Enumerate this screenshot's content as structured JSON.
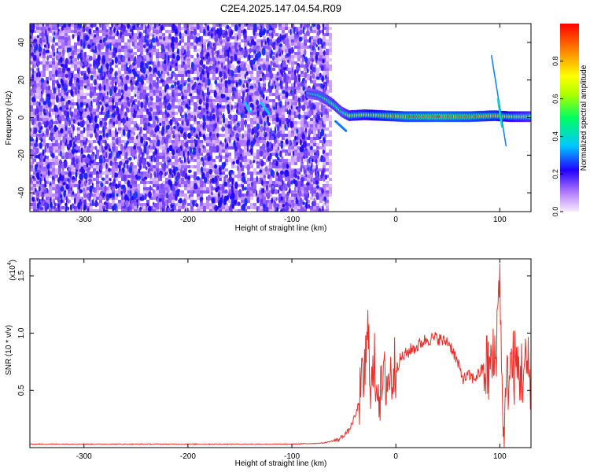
{
  "title": "C2E4.2025.147.04.54.R09",
  "chart_data": [
    {
      "type": "heatmap",
      "name": "spectrogram",
      "xlabel": "Height of straight line (km)",
      "ylabel": "Frequency (Hz)",
      "xlim": [
        -352,
        130
      ],
      "ylim": [
        -50,
        50
      ],
      "xticks": [
        -300,
        -200,
        -100,
        0,
        100
      ],
      "yticks": [
        -40,
        -20,
        0,
        20,
        40
      ],
      "xtick_labels": [
        "-300",
        "-200",
        "-100",
        "0",
        "100"
      ],
      "ytick_labels": [
        "-40",
        "-20",
        "0",
        "20",
        "40"
      ],
      "noise_region_x": [
        -352,
        -67
      ],
      "signal_trace": [
        {
          "x": -85,
          "f": 13,
          "amp": 0.45
        },
        {
          "x": -75,
          "f": 12,
          "amp": 0.5
        },
        {
          "x": -68,
          "f": 10,
          "amp": 0.55
        },
        {
          "x": -60,
          "f": 7,
          "amp": 0.6
        },
        {
          "x": -52,
          "f": 3,
          "amp": 0.55
        },
        {
          "x": -45,
          "f": 1,
          "amp": 0.65
        },
        {
          "x": -30,
          "f": 1.5,
          "amp": 0.7
        },
        {
          "x": -10,
          "f": 1,
          "amp": 0.8
        },
        {
          "x": 10,
          "f": 0.5,
          "amp": 0.9
        },
        {
          "x": 40,
          "f": 0.5,
          "amp": 0.95
        },
        {
          "x": 70,
          "f": 0.5,
          "amp": 0.9
        },
        {
          "x": 95,
          "f": 1,
          "amp": 0.8
        },
        {
          "x": 110,
          "f": 0.5,
          "amp": 0.7
        },
        {
          "x": 130,
          "f": 0.5,
          "amp": 0.6
        }
      ],
      "colorbar": {
        "label": "Normalized spectral amplitude",
        "range": [
          0,
          1
        ],
        "ticks": [
          0.0,
          0.2,
          0.4,
          0.6,
          0.8
        ],
        "tick_labels": [
          "0.0",
          "0.2",
          "0.4",
          "0.6",
          "0.8"
        ]
      }
    },
    {
      "type": "line",
      "name": "snr",
      "xlabel": "Height of straight line (km)",
      "ylabel": "SNR (10 * v/v)",
      "scale_label": "(x10",
      "scale_exponent": "4",
      "xlim": [
        -352,
        130
      ],
      "ylim": [
        0,
        1.65
      ],
      "xticks": [
        -300,
        -200,
        -100,
        0,
        100
      ],
      "yticks": [
        0.5,
        1.0,
        1.5
      ],
      "xtick_labels": [
        "-300",
        "-200",
        "-100",
        "0",
        "100"
      ],
      "ytick_labels": [
        "0.5",
        "1.0",
        "1.5"
      ],
      "color": "#e8302b",
      "series": [
        {
          "name": "SNR",
          "x": [
            -352,
            -300,
            -250,
            -200,
            -150,
            -100,
            -70,
            -55,
            -45,
            -38,
            -32,
            -28,
            -26,
            -24,
            -20,
            -15,
            -10,
            -5,
            0,
            5,
            10,
            15,
            20,
            25,
            30,
            35,
            40,
            45,
            50,
            55,
            60,
            65,
            70,
            75,
            80,
            85,
            90,
            95,
            98,
            100,
            102,
            104,
            106,
            110,
            115,
            120,
            125,
            130
          ],
          "values": [
            0.03,
            0.03,
            0.03,
            0.03,
            0.03,
            0.03,
            0.04,
            0.07,
            0.15,
            0.3,
            0.55,
            0.8,
            1.08,
            0.5,
            0.7,
            0.45,
            0.6,
            0.62,
            0.7,
            0.78,
            0.82,
            0.86,
            0.88,
            0.92,
            0.95,
            0.95,
            0.96,
            0.93,
            0.93,
            0.85,
            0.72,
            0.6,
            0.63,
            0.6,
            0.65,
            0.7,
            0.68,
            0.75,
            1.1,
            1.65,
            0.5,
            0.05,
            0.5,
            0.72,
            0.7,
            0.65,
            0.68,
            0.66
          ]
        }
      ]
    }
  ]
}
